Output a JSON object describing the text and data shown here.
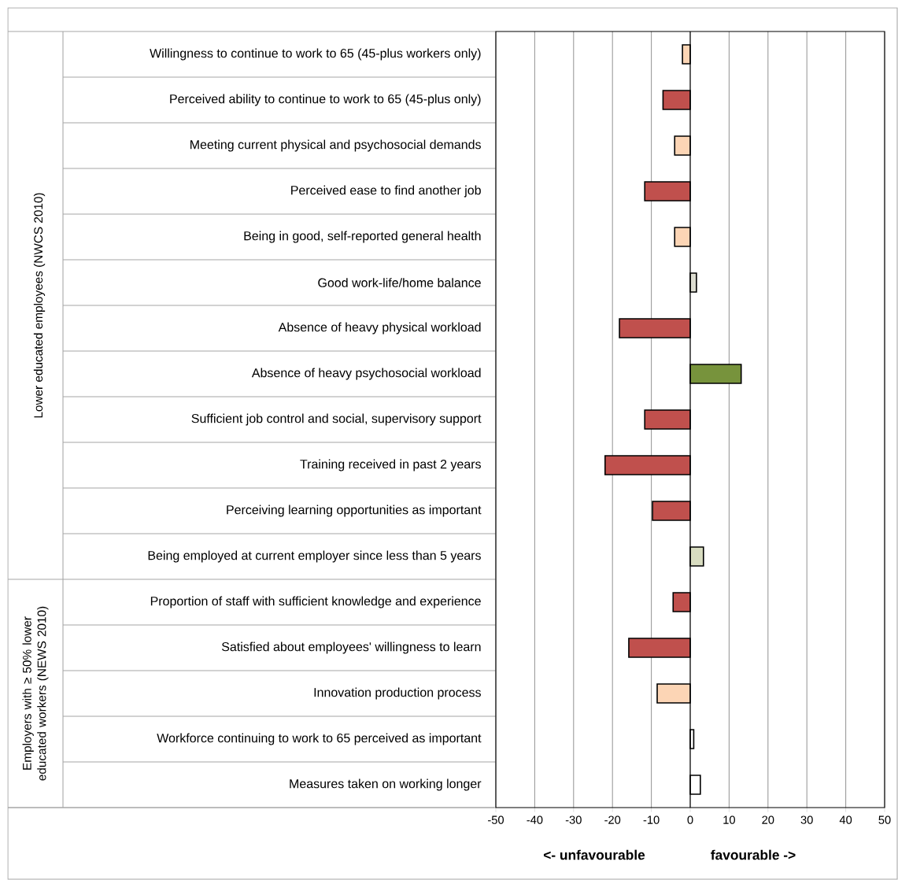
{
  "chart_data": {
    "type": "bar",
    "orientation": "horizontal",
    "categories": [
      "Willingness to continue to work to 65 (45-plus workers only)",
      "Perceived ability to continue to work to 65 (45-plus only)",
      "Meeting current physical and psychosocial demands",
      "Perceived ease to find another job",
      "Being in good, self-reported general health",
      "Good work-life/home balance",
      "Absence of heavy physical workload",
      "Absence of heavy psychosocial workload",
      "Sufficient job control and social, supervisory support",
      "Training received in past 2 years",
      "Perceiving learning opportunities as important",
      "Being employed at current employer since less than 5 years",
      "Proportion of staff with sufficient knowledge and experience",
      "Satisfied about employees' willingness to learn",
      "Innovation production process",
      "Workforce continuing to work to 65 perceived as important",
      "Measures taken on working longer"
    ],
    "values": [
      -2.0,
      -7.0,
      -4.0,
      -11.7,
      -4.0,
      1.6,
      -18.2,
      13.1,
      -11.7,
      -21.9,
      -9.7,
      3.4,
      -4.4,
      -15.8,
      -8.5,
      0.9,
      2.6
    ],
    "colors": [
      "#fcd5b5",
      "#c0504d",
      "#fcd5b5",
      "#c0504d",
      "#fcd5b5",
      "#dcdcd0",
      "#c0504d",
      "#77933c",
      "#c0504d",
      "#c0504d",
      "#c0504d",
      "#d8dcc0",
      "#c0504d",
      "#c0504d",
      "#fcd5b5",
      "#ffffff",
      "#ffffff"
    ],
    "xlim": [
      -50,
      50
    ],
    "xticks": [
      -50,
      -40,
      -30,
      -20,
      -10,
      0,
      10,
      20,
      30,
      40,
      50
    ],
    "grid": "x",
    "annotations": [
      "**<- unfavourable**",
      "**favourable ->**",
      "Lower educated employees (NWCS 2010)",
      "Employers with ≥ 50% lower educated workers (NEWS 2010)"
    ]
  }
}
